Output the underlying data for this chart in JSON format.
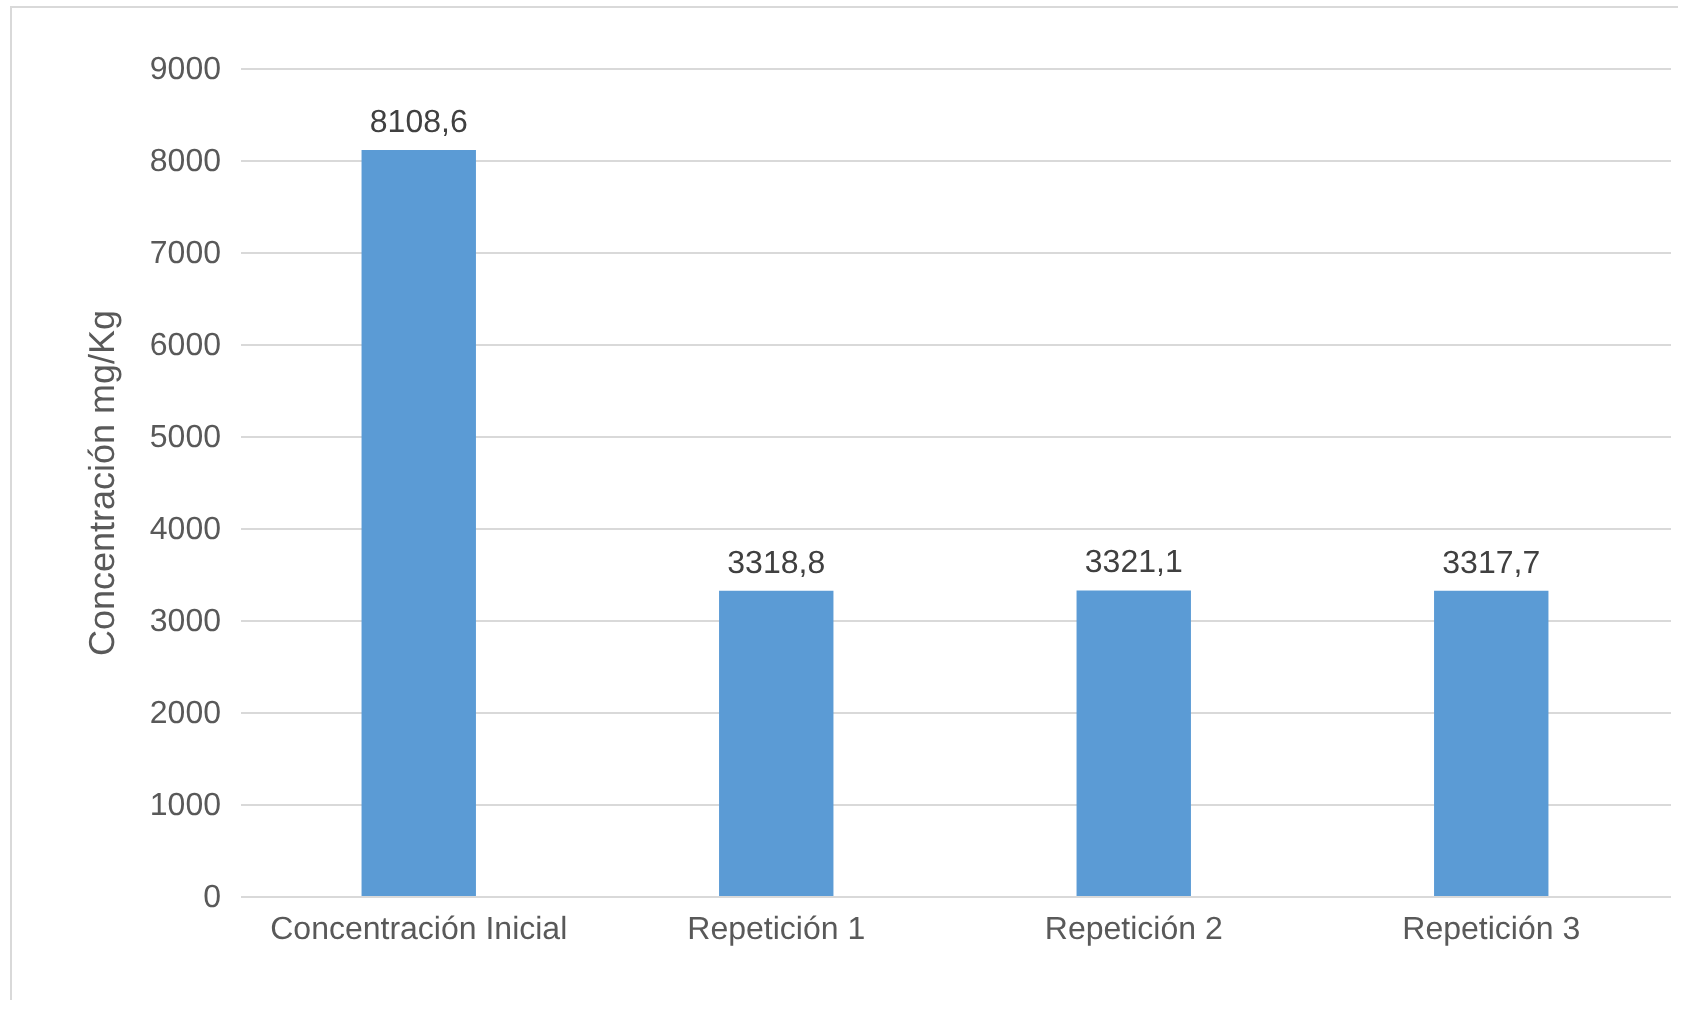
{
  "chart_data": {
    "type": "bar",
    "ylabel": "Concentración mg/Kg",
    "categories": [
      "Concentración Inicial",
      "Repetición 1",
      "Repetición 2",
      "Repetición 3"
    ],
    "values": [
      8108.6,
      3318.8,
      3321.1,
      3317.7
    ],
    "value_labels": [
      "8108,6",
      "3318,8",
      "3321,1",
      "3317,7"
    ],
    "color": "#5b9bd5",
    "ylim": [
      0,
      9000
    ],
    "yticks": [
      0,
      1000,
      2000,
      3000,
      4000,
      5000,
      6000,
      7000,
      8000,
      9000
    ],
    "grid": "y"
  }
}
